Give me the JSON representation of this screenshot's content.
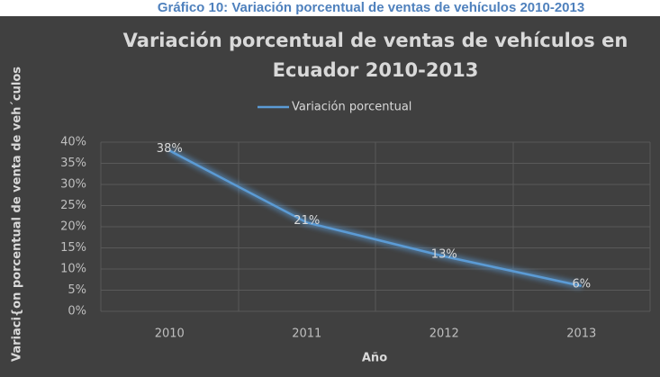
{
  "chart_data": {
    "type": "line",
    "caption": "Gráfico 10: Variación porcentual de ventas de vehículos 2010-2013",
    "title": "Variación porcentual de ventas de vehículos en Ecuador 2010-2013",
    "x_label": "Año",
    "y_label": "Variaci{on porcentual de venta de veh´culos",
    "categories": [
      "2010",
      "2011",
      "2012",
      "2013"
    ],
    "series": [
      {
        "name": "Variación porcentual",
        "color": "#5b9bd5",
        "values": [
          38,
          21,
          13,
          6
        ],
        "value_labels": [
          "38%",
          "21%",
          "13%",
          "6%"
        ]
      }
    ],
    "ylim": [
      0,
      40
    ],
    "yticks": [
      {
        "value": 0,
        "label": "0%"
      },
      {
        "value": 5,
        "label": "5%"
      },
      {
        "value": 10,
        "label": "10%"
      },
      {
        "value": 15,
        "label": "15%"
      },
      {
        "value": 20,
        "label": "20%"
      },
      {
        "value": 25,
        "label": "25%"
      },
      {
        "value": 30,
        "label": "30%"
      },
      {
        "value": 35,
        "label": "35%"
      },
      {
        "value": 40,
        "label": "40%"
      }
    ],
    "grid": true,
    "legend": "top"
  }
}
